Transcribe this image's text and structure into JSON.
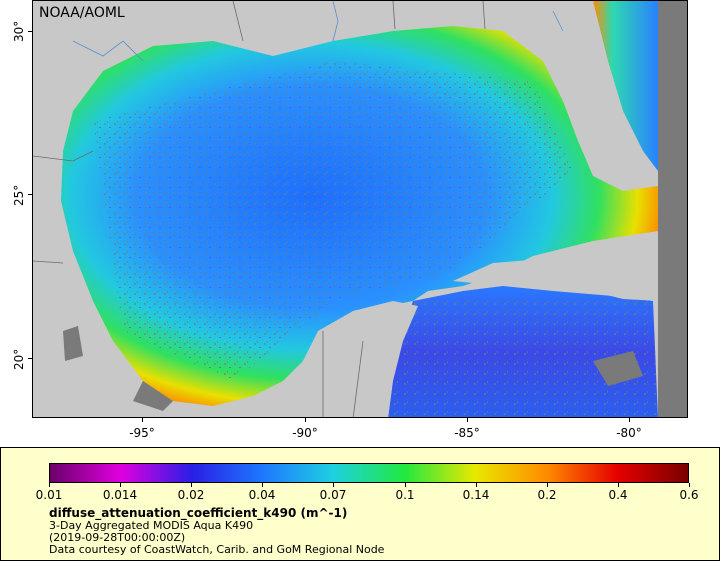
{
  "map": {
    "credit": "NOAA/AOML",
    "lat_ticks": [
      "30°",
      "25°",
      "20°"
    ],
    "lon_ticks": [
      "-95°",
      "-90°",
      "-85°",
      "-80°"
    ],
    "colors": {
      "land": "#c8c8c8",
      "no_data": "#7a7a7a",
      "boundary": "#6b6b6b",
      "river": "#5a8fcc"
    }
  },
  "legend": {
    "colorbar_ticks": [
      "0.01",
      "0.014",
      "0.02",
      "0.04",
      "0.07",
      "0.1",
      "0.14",
      "0.2",
      "0.4",
      "0.6"
    ],
    "colormap": [
      "#6a006a",
      "#e000e0",
      "#2a1ee6",
      "#1e78ff",
      "#1ed0e0",
      "#22e840",
      "#e8e800",
      "#ff8c00",
      "#e60000",
      "#7a0000"
    ],
    "variable": "diffuse_attenuation_coefficient_k490 (m^-1)",
    "product": "3-Day Aggregated MODIS Aqua K490",
    "time": "(2019-09-28T00:00:00Z)",
    "source": "Data courtesy of CoastWatch, Carib. and GoM Regional Node"
  }
}
